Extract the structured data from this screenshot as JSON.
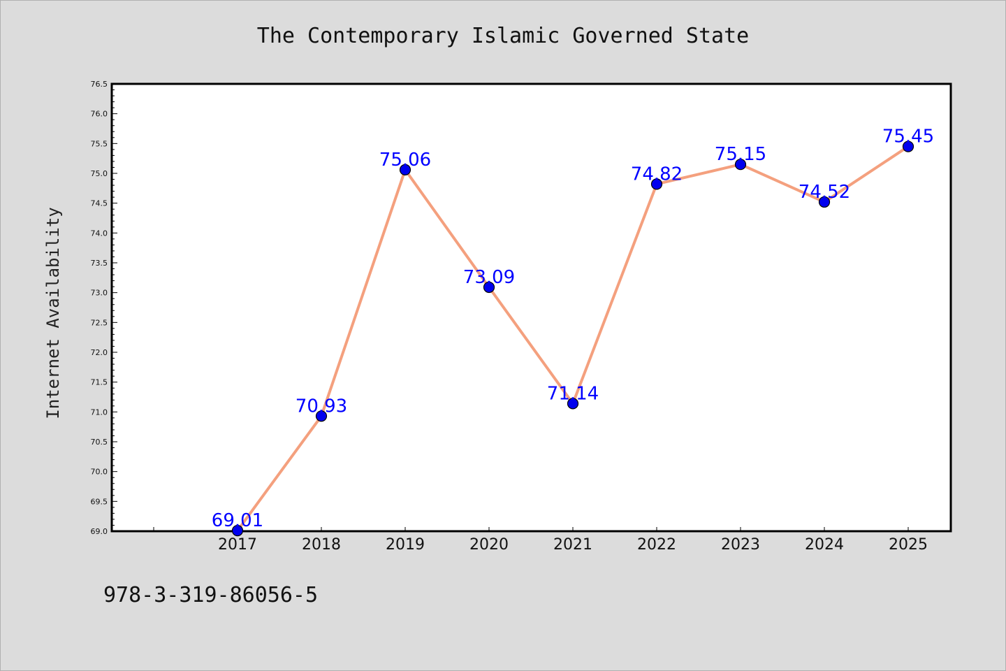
{
  "chart_data": {
    "type": "line",
    "title": "The Contemporary Islamic Governed State",
    "xlabel": "",
    "ylabel": "Internet Availability",
    "categories": [
      "2017",
      "2018",
      "2019",
      "2020",
      "2021",
      "2022",
      "2023",
      "2024",
      "2025"
    ],
    "series": [
      {
        "values": [
          69.01,
          70.93,
          75.06,
          73.09,
          71.14,
          74.82,
          75.15,
          74.52,
          75.45
        ],
        "labels": [
          "69.01",
          "70.93",
          "75.06",
          "73.09",
          "71.14",
          "74.82",
          "75.15",
          "74.52",
          "75.45"
        ],
        "line_color": "#f4a07e",
        "marker_color": "#0000ee",
        "label_color": "#0000ff"
      }
    ],
    "ylim": [
      69.0,
      76.5
    ],
    "yticks": [
      "69.0",
      "69.5",
      "70.0",
      "70.5",
      "71.0",
      "71.5",
      "72.0",
      "72.5",
      "73.0",
      "73.5",
      "74.0",
      "74.5",
      "75.0",
      "75.5",
      "76.0",
      "76.5"
    ],
    "grid": false,
    "legend": "none"
  },
  "footer": {
    "code": "978-3-319-86056-5"
  },
  "colors": {
    "background": "#dcdcdc",
    "plot_background": "#ffffff"
  }
}
